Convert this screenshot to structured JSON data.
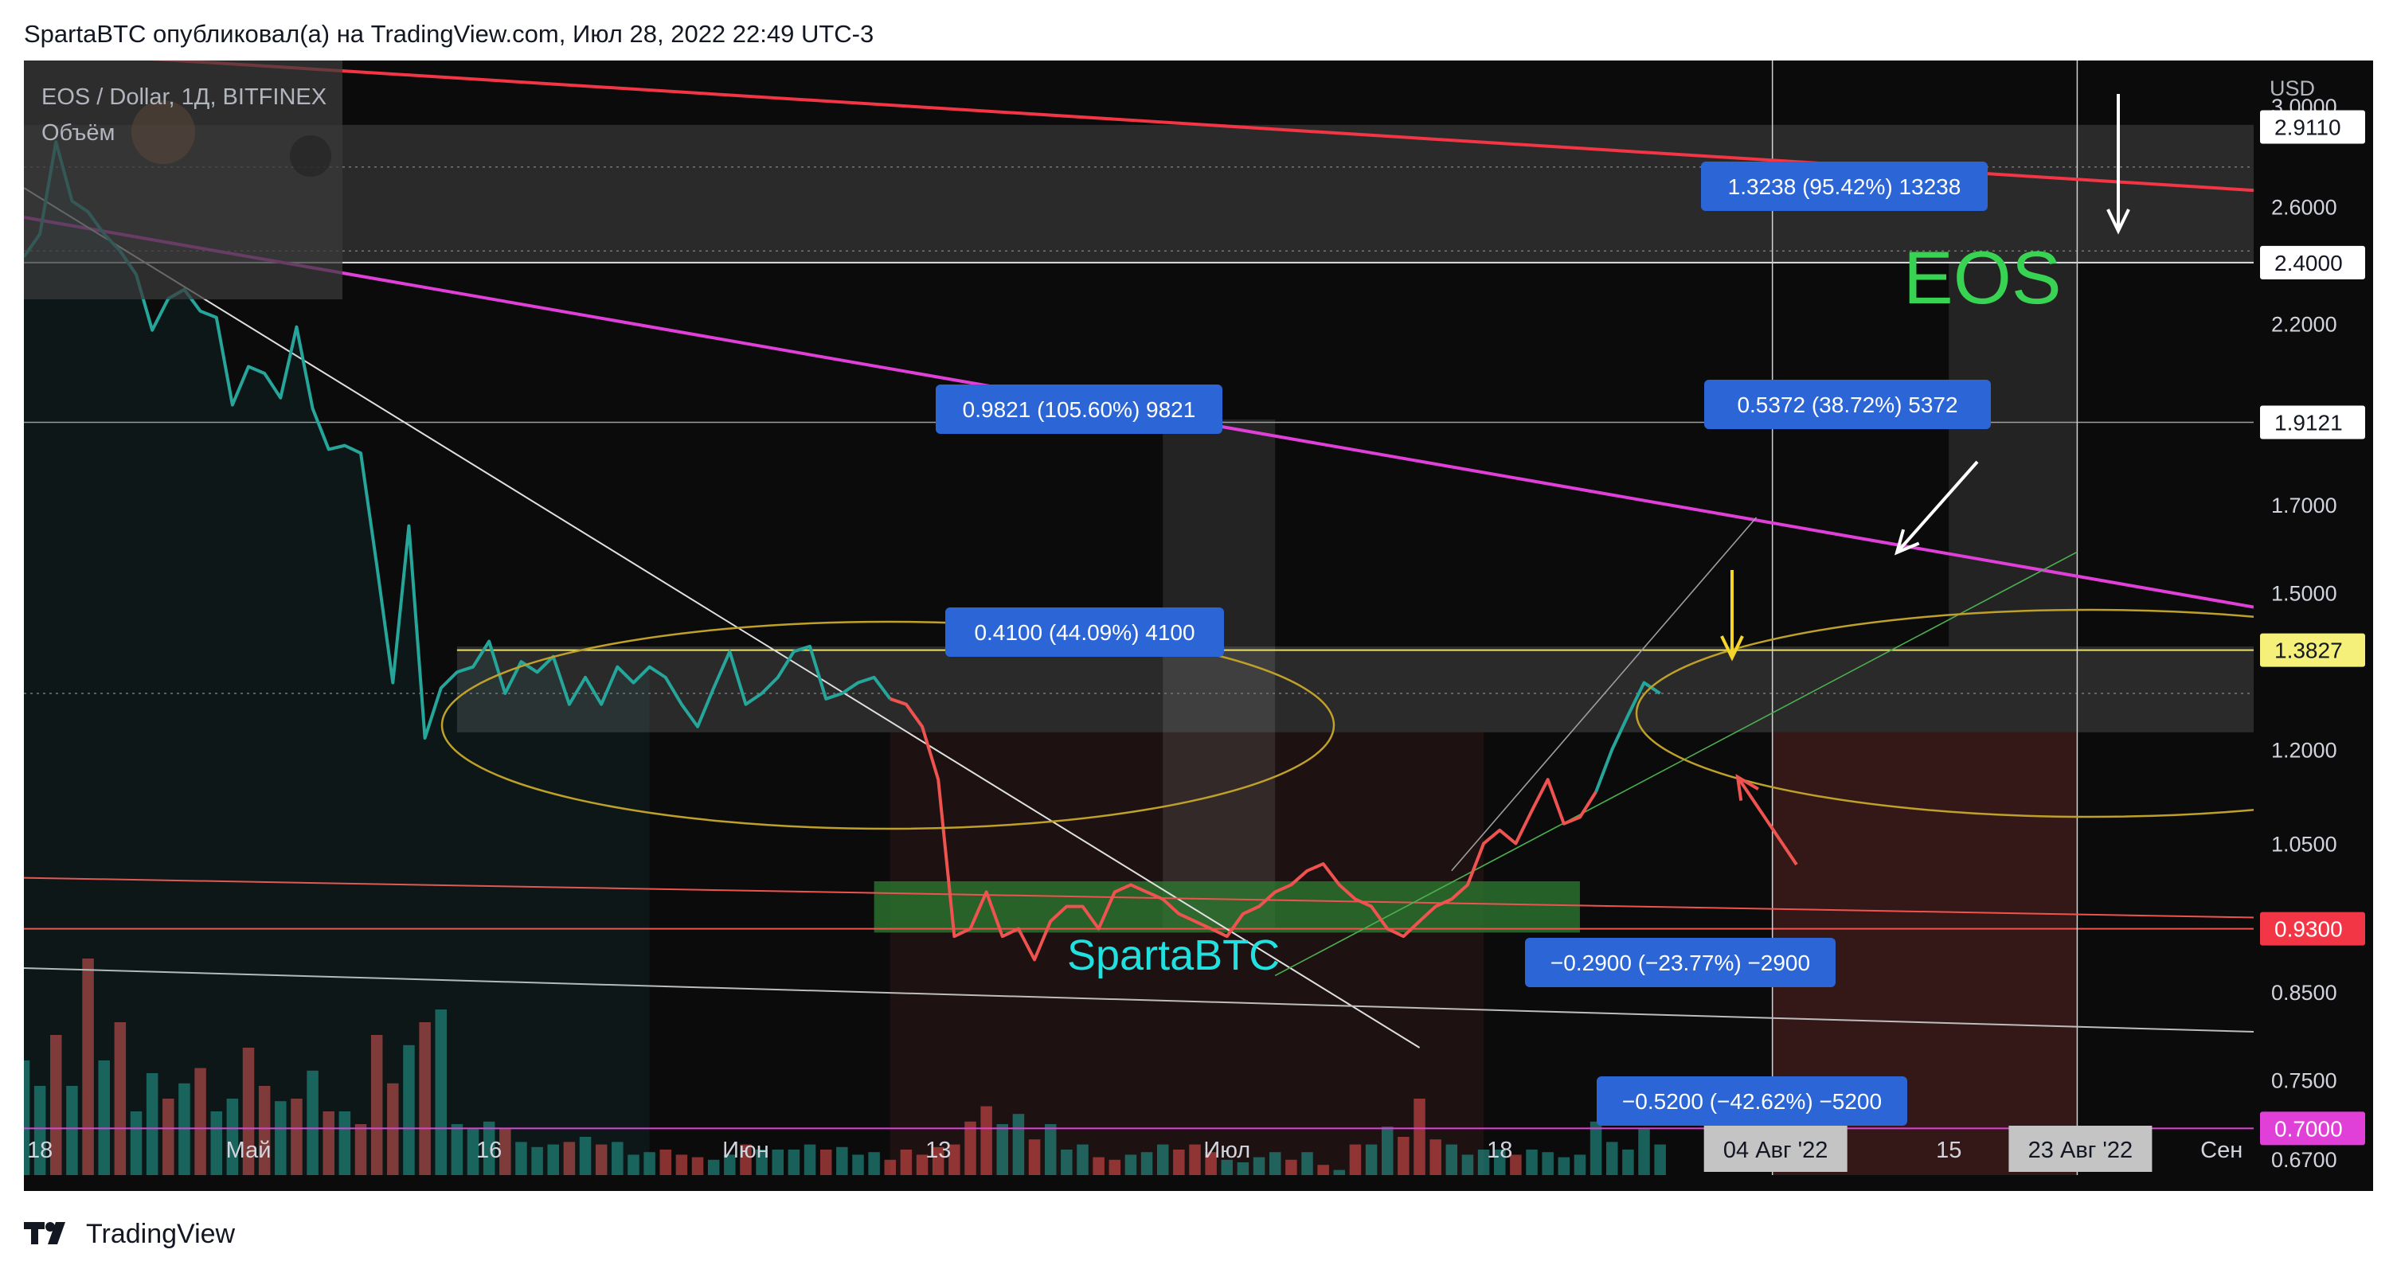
{
  "header": {
    "published_line": "SpartaBTC опубликовал(а) на TradingView.com, Июл 28, 2022 22:49 UTC-3"
  },
  "footer": {
    "brand": "TradingView"
  },
  "symbol": {
    "line1": "EOS / Dollar, 1Д, BITFINEX",
    "line2": "Объём"
  },
  "labels": {
    "eos": "EOS",
    "author": "SpartaBTC"
  },
  "colors": {
    "background": "#0b0b0c",
    "panel": "#111113",
    "up": "#26a69a",
    "down": "#ef5350",
    "resistance_red": "#f23645",
    "magenta": "#e040d8",
    "yellow_zone": "#e8e06a",
    "measure_blue": "#2962ff",
    "green_zone": "#2e7d32",
    "eos_green": "#39d353",
    "author_cyan": "#20e0e0"
  },
  "measurements": [
    {
      "text": "1.3238 (95.42%) 13238"
    },
    {
      "text": "0.9821 (105.60%) 9821"
    },
    {
      "text": "0.5372 (38.72%) 5372"
    },
    {
      "text": "0.4100 (44.09%) 4100"
    },
    {
      "text": "−0.2900 (−23.77%) −2900"
    },
    {
      "text": "−0.5200 (−42.62%) −5200"
    }
  ],
  "chart_data": {
    "type": "line",
    "currency": "USD",
    "y_axis": {
      "scale": "log",
      "ylim": [
        0.655,
        3.2
      ],
      "ticks": [
        "3.0000",
        "2.6000",
        "2.2000",
        "1.7000",
        "1.5000",
        "1.2000",
        "1.0500",
        "0.8500",
        "0.7500",
        "0.6700"
      ],
      "price_labels": [
        {
          "value": 2.911,
          "text": "2.9110",
          "style": "white"
        },
        {
          "value": 2.4,
          "text": "2.4000",
          "style": "white"
        },
        {
          "value": 1.9121,
          "text": "1.9121",
          "style": "white"
        },
        {
          "value": 1.3827,
          "text": "1.3827",
          "style": "yellow"
        },
        {
          "value": 0.93,
          "text": "0.9300",
          "style": "red"
        },
        {
          "value": 0.7,
          "text": "0.7000",
          "style": "magenta"
        }
      ]
    },
    "x_axis": {
      "range": [
        "2022-04-17",
        "2022-09-03"
      ],
      "ticks": [
        {
          "date": "2022-04-18",
          "label": "18",
          "style": "plain"
        },
        {
          "date": "2022-05-01",
          "label": "Май",
          "style": "plain"
        },
        {
          "date": "2022-05-16",
          "label": "16",
          "style": "plain"
        },
        {
          "date": "2022-06-01",
          "label": "Июн",
          "style": "plain"
        },
        {
          "date": "2022-06-13",
          "label": "13",
          "style": "plain"
        },
        {
          "date": "2022-07-01",
          "label": "Июл",
          "style": "plain"
        },
        {
          "date": "2022-07-18",
          "label": "18",
          "style": "plain"
        },
        {
          "date": "2022-08-04",
          "label": "04 Авг '22",
          "style": "box"
        },
        {
          "date": "2022-08-15",
          "label": "15",
          "style": "plain"
        },
        {
          "date": "2022-08-23",
          "label": "23 Авг '22",
          "style": "box"
        },
        {
          "date": "2022-09-01",
          "label": "Сен",
          "style": "plain"
        }
      ]
    },
    "series": [
      {
        "kind": "price",
        "x": [
          "2022-04-17",
          "2022-04-18",
          "2022-04-19",
          "2022-04-20",
          "2022-04-21",
          "2022-04-22",
          "2022-04-23",
          "2022-04-24",
          "2022-04-25",
          "2022-04-26",
          "2022-04-27",
          "2022-04-28",
          "2022-04-29",
          "2022-04-30",
          "2022-05-01",
          "2022-05-02",
          "2022-05-03",
          "2022-05-04",
          "2022-05-05",
          "2022-05-06",
          "2022-05-07",
          "2022-05-08",
          "2022-05-09",
          "2022-05-10",
          "2022-05-11",
          "2022-05-12",
          "2022-05-13",
          "2022-05-14",
          "2022-05-15",
          "2022-05-16",
          "2022-05-17",
          "2022-05-18",
          "2022-05-19",
          "2022-05-20",
          "2022-05-21",
          "2022-05-22",
          "2022-05-23",
          "2022-05-24",
          "2022-05-25",
          "2022-05-26",
          "2022-05-27",
          "2022-05-28",
          "2022-05-29",
          "2022-05-30",
          "2022-05-31",
          "2022-06-01",
          "2022-06-02",
          "2022-06-03",
          "2022-06-04",
          "2022-06-05",
          "2022-06-06",
          "2022-06-07",
          "2022-06-08",
          "2022-06-09",
          "2022-06-10",
          "2022-06-11",
          "2022-06-12",
          "2022-06-13",
          "2022-06-14",
          "2022-06-15",
          "2022-06-16",
          "2022-06-17",
          "2022-06-18",
          "2022-06-19",
          "2022-06-20",
          "2022-06-21",
          "2022-06-22",
          "2022-06-23",
          "2022-06-24",
          "2022-06-25",
          "2022-06-26",
          "2022-06-27",
          "2022-06-28",
          "2022-06-29",
          "2022-06-30",
          "2022-07-01",
          "2022-07-02",
          "2022-07-03",
          "2022-07-04",
          "2022-07-05",
          "2022-07-06",
          "2022-07-07",
          "2022-07-08",
          "2022-07-09",
          "2022-07-10",
          "2022-07-11",
          "2022-07-12",
          "2022-07-13",
          "2022-07-14",
          "2022-07-15",
          "2022-07-16",
          "2022-07-17",
          "2022-07-18",
          "2022-07-19",
          "2022-07-20",
          "2022-07-21",
          "2022-07-22",
          "2022-07-23",
          "2022-07-24",
          "2022-07-25",
          "2022-07-26",
          "2022-07-27",
          "2022-07-28"
        ],
        "close": [
          2.42,
          2.5,
          2.85,
          2.62,
          2.58,
          2.5,
          2.44,
          2.36,
          2.18,
          2.28,
          2.31,
          2.24,
          2.22,
          1.96,
          2.07,
          2.05,
          1.98,
          2.19,
          1.95,
          1.84,
          1.85,
          1.83,
          1.56,
          1.32,
          1.65,
          1.22,
          1.31,
          1.34,
          1.35,
          1.4,
          1.3,
          1.36,
          1.34,
          1.37,
          1.28,
          1.33,
          1.28,
          1.35,
          1.32,
          1.35,
          1.33,
          1.28,
          1.24,
          1.31,
          1.38,
          1.28,
          1.3,
          1.33,
          1.38,
          1.39,
          1.29,
          1.3,
          1.32,
          1.33,
          1.29,
          1.28,
          1.24,
          1.15,
          0.92,
          0.93,
          0.98,
          0.92,
          0.93,
          0.89,
          0.94,
          0.96,
          0.96,
          0.93,
          0.98,
          0.99,
          0.98,
          0.97,
          0.95,
          0.94,
          0.93,
          0.92,
          0.95,
          0.96,
          0.98,
          0.99,
          1.01,
          1.02,
          0.99,
          0.97,
          0.96,
          0.93,
          0.92,
          0.94,
          0.96,
          0.97,
          0.99,
          1.05,
          1.07,
          1.05,
          1.1,
          1.15,
          1.08,
          1.09,
          1.13,
          1.2,
          1.26,
          1.32,
          1.3
        ]
      },
      {
        "kind": "volume",
        "x_start": "2022-04-17",
        "direction": [
          1,
          1,
          0,
          1,
          0,
          1,
          0,
          1,
          1,
          0,
          1,
          0,
          1,
          1,
          0,
          0,
          1,
          0,
          1,
          0,
          1,
          0,
          0,
          0,
          1,
          0,
          1,
          1,
          1,
          1,
          0,
          1,
          1,
          1,
          0,
          1,
          0,
          1,
          1,
          1,
          0,
          0,
          0,
          1,
          1,
          0,
          1,
          1,
          1,
          1,
          0,
          1,
          1,
          1,
          0,
          0,
          0,
          0,
          0,
          0,
          0,
          1,
          1,
          0,
          1,
          1,
          1,
          0,
          0,
          1,
          1,
          1,
          0,
          0,
          0,
          1,
          1,
          1,
          1,
          0,
          1,
          0,
          1,
          0,
          1,
          1,
          0,
          0,
          0,
          1,
          1,
          1,
          1,
          0,
          1,
          1,
          1,
          1,
          1,
          1,
          1,
          1,
          1
        ],
        "values": [
          0.45,
          0.35,
          0.55,
          0.35,
          0.85,
          0.45,
          0.6,
          0.25,
          0.4,
          0.3,
          0.36,
          0.42,
          0.25,
          0.3,
          0.5,
          0.35,
          0.29,
          0.3,
          0.41,
          0.25,
          0.25,
          0.2,
          0.55,
          0.36,
          0.51,
          0.6,
          0.65,
          0.2,
          0.18,
          0.21,
          0.18,
          0.13,
          0.11,
          0.12,
          0.13,
          0.15,
          0.12,
          0.13,
          0.08,
          0.09,
          0.1,
          0.08,
          0.07,
          0.06,
          0.08,
          0.12,
          0.1,
          0.1,
          0.1,
          0.12,
          0.1,
          0.11,
          0.08,
          0.09,
          0.06,
          0.1,
          0.08,
          0.11,
          0.12,
          0.21,
          0.27,
          0.2,
          0.24,
          0.14,
          0.2,
          0.1,
          0.12,
          0.07,
          0.06,
          0.08,
          0.09,
          0.12,
          0.1,
          0.12,
          0.09,
          0.06,
          0.05,
          0.07,
          0.09,
          0.06,
          0.09,
          0.04,
          0.02,
          0.12,
          0.12,
          0.19,
          0.15,
          0.3,
          0.14,
          0.12,
          0.08,
          0.1,
          0.1,
          0.08,
          0.1,
          0.09,
          0.07,
          0.08,
          0.21,
          0.13,
          0.1,
          0.18,
          0.12
        ]
      }
    ]
  }
}
